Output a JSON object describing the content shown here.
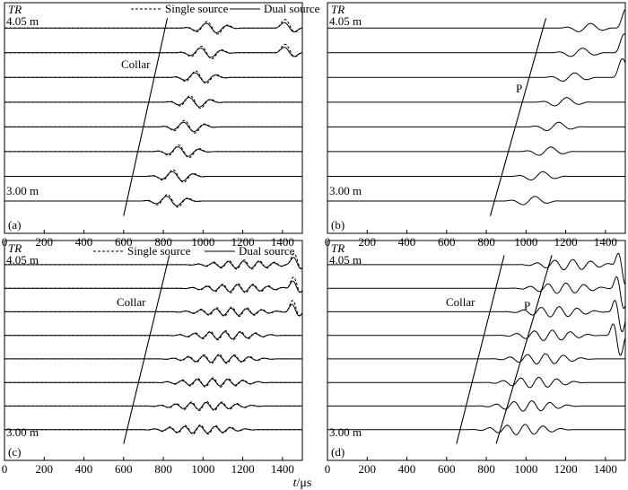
{
  "figure": {
    "xlabel_var": "t",
    "xlabel_unit": "/μs"
  },
  "chart_data": [
    {
      "type": "line",
      "panel_label": "(a)",
      "y_title": "TR",
      "top_receiver_label": "4.05 m",
      "bottom_receiver_label": "3.00 m",
      "xlim": [
        0,
        1500
      ],
      "x_ticks": [
        0,
        200,
        400,
        600,
        800,
        1000,
        1200,
        1400
      ],
      "legend": [
        {
          "name": "Single source",
          "style": "dashed"
        },
        {
          "name": "Dual source",
          "style": "solid"
        }
      ],
      "receiver_count": 8,
      "annotations": [
        {
          "text": "Collar",
          "moveout_t_bottom": 600,
          "moveout_t_top": 820
        }
      ],
      "arrivals": [
        {
          "t0_bottom": 680,
          "t0_top": 880,
          "freq_khz": 9,
          "amp": 0.75,
          "dur_us": 320
        },
        {
          "t0_bottom": 1360,
          "t0_top": 1360,
          "freq_khz": 6,
          "amp": 1.2,
          "dur_us": 140,
          "from_receiver": 6
        }
      ],
      "series": [
        {
          "name": "Single source",
          "style": "dashed",
          "amp_scale": 1.15
        },
        {
          "name": "Dual source",
          "style": "solid",
          "amp_scale": 0.85
        }
      ]
    },
    {
      "type": "line",
      "panel_label": "(b)",
      "y_title": "TR",
      "top_receiver_label": "4.05 m",
      "bottom_receiver_label": "3.00 m",
      "xlim": [
        0,
        1500
      ],
      "x_ticks": [
        0,
        200,
        400,
        600,
        800,
        1000,
        1200,
        1400
      ],
      "receiver_count": 8,
      "annotations": [
        {
          "text": "P",
          "moveout_t_bottom": 820,
          "moveout_t_top": 1100
        }
      ],
      "arrivals": [
        {
          "t0_bottom": 880,
          "t0_top": 1160,
          "freq_khz": 7.5,
          "amp": 0.6,
          "dur_us": 300
        },
        {
          "t0_bottom": 1390,
          "t0_top": 1450,
          "freq_khz": 5,
          "amp": 2.4,
          "dur_us": 110,
          "from_receiver": 5
        }
      ],
      "series": [
        {
          "name": "Dual source",
          "style": "solid",
          "amp_scale": 1.0
        }
      ]
    },
    {
      "type": "line",
      "panel_label": "(c)",
      "y_title": "TR",
      "top_receiver_label": "4.05 m",
      "bottom_receiver_label": "3.00 m",
      "xlim": [
        0,
        1500
      ],
      "x_ticks": [
        0,
        200,
        400,
        600,
        800,
        1000,
        1200,
        1400
      ],
      "legend": [
        {
          "name": "Single source",
          "style": "dashed"
        },
        {
          "name": "Dual source",
          "style": "solid"
        }
      ],
      "receiver_count": 8,
      "annotations": [
        {
          "text": "Collar",
          "moveout_t_bottom": 600,
          "moveout_t_top": 830
        }
      ],
      "arrivals": [
        {
          "t0_bottom": 660,
          "t0_top": 880,
          "freq_khz": 13,
          "amp": 0.55,
          "dur_us": 650
        },
        {
          "t0_bottom": 1390,
          "t0_top": 1420,
          "freq_khz": 8,
          "amp": 1.6,
          "dur_us": 100,
          "from_receiver": 5
        }
      ],
      "series": [
        {
          "name": "Single source",
          "style": "dashed",
          "amp_scale": 1.15
        },
        {
          "name": "Dual source",
          "style": "solid",
          "amp_scale": 0.85
        }
      ]
    },
    {
      "type": "line",
      "panel_label": "(d)",
      "y_title": "TR",
      "top_receiver_label": "4.05 m",
      "bottom_receiver_label": "3.00 m",
      "xlim": [
        0,
        1500
      ],
      "x_ticks": [
        0,
        200,
        400,
        600,
        800,
        1000,
        1200,
        1400
      ],
      "receiver_count": 8,
      "annotations": [
        {
          "text": "Collar",
          "moveout_t_bottom": 650,
          "moveout_t_top": 890
        },
        {
          "text": "P",
          "moveout_t_bottom": 850,
          "moveout_t_top": 1130
        }
      ],
      "arrivals": [
        {
          "t0_bottom": 700,
          "t0_top": 940,
          "freq_khz": 11,
          "amp": 0.7,
          "dur_us": 560
        },
        {
          "t0_bottom": 1370,
          "t0_top": 1430,
          "freq_khz": 10,
          "amp": 3.0,
          "dur_us": 120,
          "from_receiver": 4
        }
      ],
      "series": [
        {
          "name": "Dual source",
          "style": "solid",
          "amp_scale": 1.0
        }
      ]
    }
  ]
}
